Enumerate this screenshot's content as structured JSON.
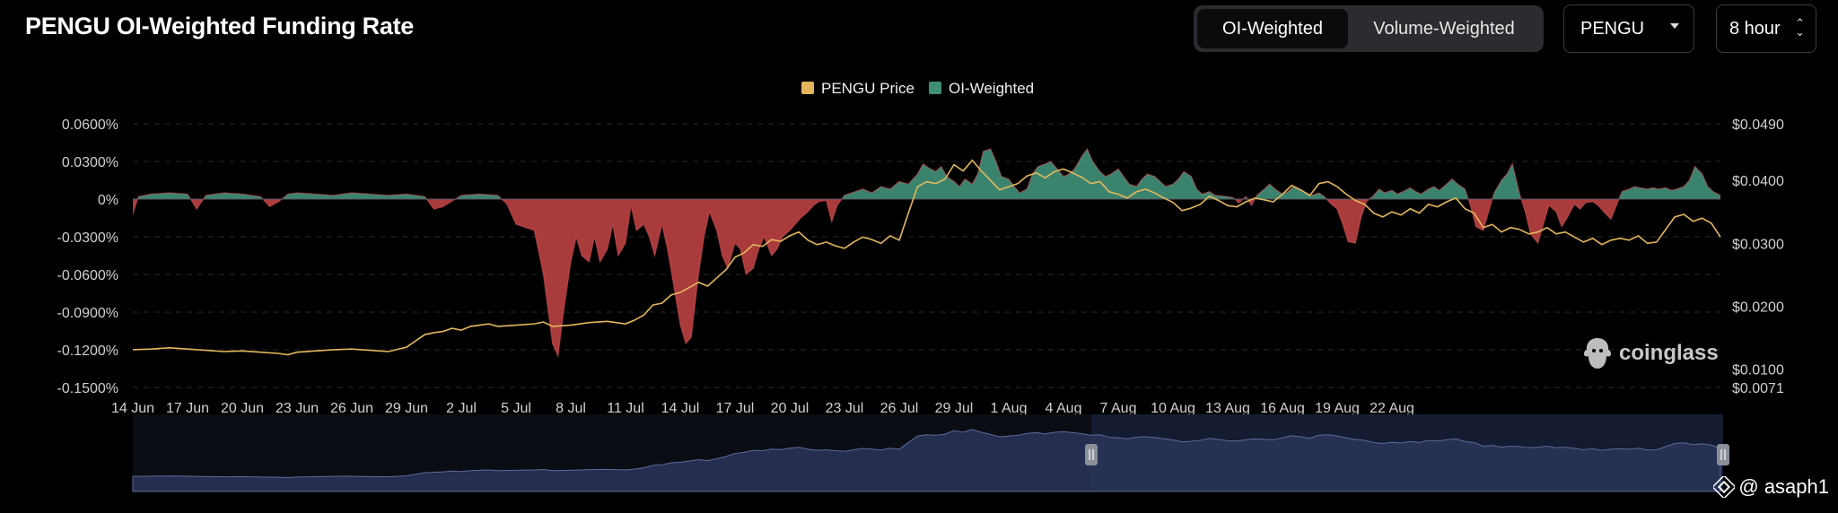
{
  "header": {
    "title": "PENGU OI-Weighted Funding Rate",
    "mode_tabs": [
      {
        "label": "OI-Weighted",
        "active": true
      },
      {
        "label": "Volume-Weighted",
        "active": false
      }
    ],
    "coin_select": "PENGU",
    "interval_select": "8 hour"
  },
  "watermark": "coinglass",
  "credit": "@ asaph1",
  "colors": {
    "background": "#000000",
    "price_line": "#e3b85c",
    "positive_area": "#3f8f78",
    "negative_area": "#b94042",
    "grid": "#2a2a2e",
    "axis_text": "#d0d0d0"
  },
  "icons": {
    "watermark": "coinglass-logo-icon",
    "credit": "binance-diamond-icon",
    "select_caret": "chevron-down-icon",
    "interval_caret": "up-down-icon",
    "range_handle": "pause-handle-icon"
  },
  "chart_data": {
    "type": "area",
    "legend": [
      {
        "name": "PENGU Price",
        "color": "#e3b85c"
      },
      {
        "name": "OI-Weighted",
        "color": "#3f8f78"
      }
    ],
    "legend_position": "top-center",
    "grid": true,
    "x_ticks": [
      "14 Jun",
      "17 Jun",
      "20 Jun",
      "23 Jun",
      "26 Jun",
      "29 Jun",
      "2 Jul",
      "5 Jul",
      "8 Jul",
      "11 Jul",
      "14 Jul",
      "17 Jul",
      "20 Jul",
      "23 Jul",
      "26 Jul",
      "29 Jul",
      "1 Aug",
      "4 Aug",
      "7 Aug",
      "10 Aug",
      "13 Aug",
      "16 Aug",
      "19 Aug",
      "22 Aug"
    ],
    "y_left_ticks": [
      "0.0600%",
      "0.0300%",
      "0%",
      "-0.0300%",
      "-0.0600%",
      "-0.0900%",
      "-0.1200%",
      "-0.1500%"
    ],
    "y_left_range": [
      -0.15,
      0.06
    ],
    "y_right_ticks": [
      "$0.0490",
      "$0.0400",
      "$0.0300",
      "$0.0200",
      "$0.0100",
      "$0.0071"
    ],
    "y_right_range": [
      0.0071,
      0.049
    ],
    "x_range_days": [
      0,
      76
    ],
    "funding_rate_pct": [
      [
        0,
        -0.012
      ],
      [
        0.3,
        0.002
      ],
      [
        1,
        0.004
      ],
      [
        2,
        0.005
      ],
      [
        3,
        0.004
      ],
      [
        3.5,
        -0.008
      ],
      [
        4,
        0.003
      ],
      [
        5,
        0.005
      ],
      [
        6,
        0.004
      ],
      [
        7,
        0.002
      ],
      [
        7.5,
        -0.006
      ],
      [
        8,
        -0.002
      ],
      [
        8.5,
        0.004
      ],
      [
        9,
        0.005
      ],
      [
        10,
        0.004
      ],
      [
        11,
        0.003
      ],
      [
        12,
        0.005
      ],
      [
        13,
        0.004
      ],
      [
        14,
        0.003
      ],
      [
        15,
        0.004
      ],
      [
        16,
        0.002
      ],
      [
        16.5,
        -0.008
      ],
      [
        17,
        -0.006
      ],
      [
        18,
        0.003
      ],
      [
        19,
        0.004
      ],
      [
        20,
        0.003
      ],
      [
        20.5,
        -0.004
      ],
      [
        21,
        -0.02
      ],
      [
        22,
        -0.025
      ],
      [
        22.5,
        -0.06
      ],
      [
        23,
        -0.115
      ],
      [
        23.3,
        -0.125
      ],
      [
        23.6,
        -0.09
      ],
      [
        24,
        -0.05
      ],
      [
        24.3,
        -0.03
      ],
      [
        24.6,
        -0.045
      ],
      [
        25,
        -0.05
      ],
      [
        25.3,
        -0.03
      ],
      [
        25.6,
        -0.05
      ],
      [
        26,
        -0.04
      ],
      [
        26.3,
        -0.02
      ],
      [
        26.6,
        -0.045
      ],
      [
        27,
        -0.035
      ],
      [
        27.3,
        -0.005
      ],
      [
        27.6,
        -0.025
      ],
      [
        28,
        -0.02
      ],
      [
        28.3,
        -0.03
      ],
      [
        28.6,
        -0.045
      ],
      [
        29,
        -0.02
      ],
      [
        29.3,
        -0.04
      ],
      [
        29.6,
        -0.065
      ],
      [
        30,
        -0.1
      ],
      [
        30.3,
        -0.115
      ],
      [
        30.6,
        -0.11
      ],
      [
        31,
        -0.06
      ],
      [
        31.3,
        -0.03
      ],
      [
        31.6,
        -0.01
      ],
      [
        32,
        -0.025
      ],
      [
        32.3,
        -0.045
      ],
      [
        32.6,
        -0.055
      ],
      [
        33,
        -0.035
      ],
      [
        33.3,
        -0.04
      ],
      [
        33.6,
        -0.06
      ],
      [
        34,
        -0.055
      ],
      [
        34.3,
        -0.04
      ],
      [
        34.6,
        -0.03
      ],
      [
        35,
        -0.045
      ],
      [
        35.3,
        -0.04
      ],
      [
        35.6,
        -0.03
      ],
      [
        36,
        -0.025
      ],
      [
        36.3,
        -0.02
      ],
      [
        36.6,
        -0.015
      ],
      [
        37,
        -0.01
      ],
      [
        37.3,
        -0.005
      ],
      [
        37.6,
        -0.002
      ],
      [
        38,
        -0.001
      ],
      [
        38.3,
        -0.018
      ],
      [
        38.6,
        -0.005
      ],
      [
        39,
        0.003
      ],
      [
        40,
        0.008
      ],
      [
        40.5,
        0.005
      ],
      [
        41,
        0.01
      ],
      [
        41.5,
        0.008
      ],
      [
        42,
        0.014
      ],
      [
        42.5,
        0.012
      ],
      [
        43,
        0.02
      ],
      [
        43.3,
        0.028
      ],
      [
        43.6,
        0.025
      ],
      [
        44,
        0.022
      ],
      [
        44.3,
        0.026
      ],
      [
        44.6,
        0.018
      ],
      [
        45,
        0.014
      ],
      [
        45.3,
        0.01
      ],
      [
        45.6,
        0.016
      ],
      [
        46,
        0.012
      ],
      [
        46.3,
        0.02
      ],
      [
        46.6,
        0.038
      ],
      [
        47,
        0.04
      ],
      [
        47.3,
        0.03
      ],
      [
        47.6,
        0.018
      ],
      [
        48,
        0.016
      ],
      [
        48.3,
        0.01
      ],
      [
        48.6,
        0.005
      ],
      [
        49,
        0.008
      ],
      [
        49.3,
        0.02
      ],
      [
        49.6,
        0.026
      ],
      [
        50,
        0.028
      ],
      [
        50.3,
        0.03
      ],
      [
        50.6,
        0.025
      ],
      [
        51,
        0.018
      ],
      [
        51.3,
        0.02
      ],
      [
        51.6,
        0.024
      ],
      [
        52,
        0.034
      ],
      [
        52.3,
        0.04
      ],
      [
        52.6,
        0.03
      ],
      [
        53,
        0.022
      ],
      [
        53.3,
        0.018
      ],
      [
        53.6,
        0.02
      ],
      [
        54,
        0.024
      ],
      [
        54.3,
        0.018
      ],
      [
        54.6,
        0.012
      ],
      [
        55,
        0.01
      ],
      [
        55.3,
        0.016
      ],
      [
        55.6,
        0.02
      ],
      [
        56,
        0.018
      ],
      [
        56.3,
        0.014
      ],
      [
        56.6,
        0.01
      ],
      [
        57,
        0.012
      ],
      [
        57.3,
        0.016
      ],
      [
        57.6,
        0.022
      ],
      [
        58,
        0.018
      ],
      [
        58.3,
        0.008
      ],
      [
        58.6,
        0.004
      ],
      [
        59,
        0.006
      ],
      [
        59.3,
        0.003
      ],
      [
        60,
        0.002
      ],
      [
        60.3,
        0.001
      ],
      [
        60.6,
        -0.003
      ],
      [
        61,
        0.002
      ],
      [
        61.3,
        -0.005
      ],
      [
        61.6,
        0.003
      ],
      [
        62,
        0.008
      ],
      [
        62.3,
        0.012
      ],
      [
        62.6,
        0.008
      ],
      [
        63,
        0.004
      ],
      [
        63.3,
        0.006
      ],
      [
        63.6,
        0.01
      ],
      [
        64,
        0.007
      ],
      [
        64.3,
        0.005
      ],
      [
        64.6,
        0.003
      ],
      [
        65,
        0.005
      ],
      [
        65.3,
        0.002
      ],
      [
        65.6,
        -0.003
      ],
      [
        66,
        -0.008
      ],
      [
        66.3,
        -0.02
      ],
      [
        66.6,
        -0.034
      ],
      [
        67,
        -0.035
      ],
      [
        67.3,
        -0.015
      ],
      [
        67.6,
        -0.002
      ],
      [
        68,
        0.003
      ],
      [
        68.3,
        0.008
      ],
      [
        68.6,
        0.005
      ],
      [
        69,
        0.007
      ],
      [
        69.3,
        0.004
      ],
      [
        69.6,
        0.006
      ],
      [
        70,
        0.009
      ],
      [
        70.3,
        0.006
      ],
      [
        70.6,
        0.004
      ],
      [
        71,
        0.008
      ],
      [
        71.3,
        0.01
      ],
      [
        71.6,
        0.007
      ],
      [
        72,
        0.012
      ],
      [
        72.3,
        0.016
      ],
      [
        72.6,
        0.012
      ],
      [
        73,
        0.008
      ],
      [
        73.3,
        -0.005
      ],
      [
        73.6,
        -0.022
      ],
      [
        74,
        -0.025
      ],
      [
        74.3,
        -0.01
      ],
      [
        74.6,
        0.005
      ],
      [
        75,
        0.015
      ],
      [
        75.3,
        0.02
      ],
      [
        75.6,
        0.028
      ],
      [
        76,
        0.004
      ],
      [
        76.3,
        -0.01
      ],
      [
        76.6,
        -0.028
      ],
      [
        77,
        -0.035
      ],
      [
        77.3,
        -0.02
      ],
      [
        77.6,
        -0.005
      ],
      [
        78,
        -0.01
      ],
      [
        78.3,
        -0.022
      ],
      [
        78.6,
        -0.015
      ],
      [
        79,
        -0.004
      ],
      [
        79.3,
        -0.008
      ],
      [
        79.6,
        -0.003
      ],
      [
        80,
        -0.002
      ],
      [
        80.3,
        -0.005
      ],
      [
        80.6,
        -0.01
      ],
      [
        81,
        -0.016
      ],
      [
        81.3,
        -0.005
      ],
      [
        81.6,
        0.006
      ],
      [
        82,
        0.008
      ],
      [
        82.3,
        0.01
      ],
      [
        82.6,
        0.009
      ],
      [
        83,
        0.008
      ],
      [
        83.3,
        0.009
      ],
      [
        83.6,
        0.008
      ],
      [
        84,
        0.009
      ],
      [
        84.3,
        0.007
      ],
      [
        84.6,
        0.008
      ],
      [
        85,
        0.01
      ],
      [
        85.3,
        0.015
      ],
      [
        85.6,
        0.026
      ],
      [
        86,
        0.02
      ],
      [
        86.3,
        0.01
      ],
      [
        86.6,
        0.006
      ],
      [
        87,
        0.003
      ]
    ],
    "funding_x_scale_days": 87,
    "price_usd": [
      [
        0,
        0.0131
      ],
      [
        1,
        0.0132
      ],
      [
        2,
        0.0134
      ],
      [
        3,
        0.0132
      ],
      [
        4,
        0.013
      ],
      [
        5,
        0.0128
      ],
      [
        6,
        0.0129
      ],
      [
        7,
        0.0127
      ],
      [
        8,
        0.0125
      ],
      [
        8.5,
        0.0123
      ],
      [
        9,
        0.0127
      ],
      [
        10,
        0.0129
      ],
      [
        11,
        0.0131
      ],
      [
        12,
        0.0132
      ],
      [
        13,
        0.013
      ],
      [
        14,
        0.0128
      ],
      [
        15,
        0.0135
      ],
      [
        15.5,
        0.0145
      ],
      [
        16,
        0.0155
      ],
      [
        16.5,
        0.0158
      ],
      [
        17,
        0.016
      ],
      [
        17.5,
        0.0165
      ],
      [
        18,
        0.0162
      ],
      [
        18.5,
        0.0168
      ],
      [
        19,
        0.017
      ],
      [
        19.5,
        0.0172
      ],
      [
        20,
        0.0168
      ],
      [
        21,
        0.017
      ],
      [
        22,
        0.0172
      ],
      [
        22.5,
        0.0175
      ],
      [
        23,
        0.0168
      ],
      [
        24,
        0.017
      ],
      [
        25,
        0.0174
      ],
      [
        26,
        0.0176
      ],
      [
        27,
        0.0172
      ],
      [
        27.5,
        0.0178
      ],
      [
        28,
        0.0186
      ],
      [
        28.5,
        0.0202
      ],
      [
        29,
        0.0205
      ],
      [
        29.5,
        0.0218
      ],
      [
        30,
        0.0222
      ],
      [
        30.5,
        0.023
      ],
      [
        31,
        0.0238
      ],
      [
        31.5,
        0.0232
      ],
      [
        32,
        0.0245
      ],
      [
        32.5,
        0.0258
      ],
      [
        33,
        0.0278
      ],
      [
        33.5,
        0.0285
      ],
      [
        34,
        0.0298
      ],
      [
        34.5,
        0.0295
      ],
      [
        35,
        0.0306
      ],
      [
        35.5,
        0.0303
      ],
      [
        36,
        0.0312
      ],
      [
        36.5,
        0.0318
      ],
      [
        37,
        0.0305
      ],
      [
        37.5,
        0.0298
      ],
      [
        38,
        0.0302
      ],
      [
        38.5,
        0.0296
      ],
      [
        39,
        0.0292
      ],
      [
        39.5,
        0.0302
      ],
      [
        40,
        0.031
      ],
      [
        40.5,
        0.0306
      ],
      [
        41,
        0.03
      ],
      [
        41.5,
        0.0312
      ],
      [
        42,
        0.0305
      ],
      [
        42.5,
        0.0348
      ],
      [
        43,
        0.039
      ],
      [
        43.5,
        0.0398
      ],
      [
        44,
        0.0395
      ],
      [
        44.5,
        0.0402
      ],
      [
        45,
        0.0425
      ],
      [
        45.5,
        0.0415
      ],
      [
        46,
        0.0432
      ],
      [
        46.5,
        0.0415
      ],
      [
        47,
        0.04
      ],
      [
        47.5,
        0.0385
      ],
      [
        48,
        0.039
      ],
      [
        48.5,
        0.0395
      ],
      [
        49,
        0.0407
      ],
      [
        49.5,
        0.0412
      ],
      [
        50,
        0.0404
      ],
      [
        50.5,
        0.0414
      ],
      [
        51,
        0.0418
      ],
      [
        51.5,
        0.0412
      ],
      [
        52,
        0.0405
      ],
      [
        52.5,
        0.0395
      ],
      [
        53,
        0.0398
      ],
      [
        53.5,
        0.0382
      ],
      [
        54,
        0.0378
      ],
      [
        54.5,
        0.0372
      ],
      [
        55,
        0.0382
      ],
      [
        55.5,
        0.0386
      ],
      [
        56,
        0.038
      ],
      [
        56.5,
        0.0372
      ],
      [
        57,
        0.0365
      ],
      [
        57.5,
        0.0352
      ],
      [
        58,
        0.0356
      ],
      [
        58.5,
        0.0362
      ],
      [
        59,
        0.0375
      ],
      [
        59.5,
        0.0368
      ],
      [
        60,
        0.036
      ],
      [
        60.5,
        0.0358
      ],
      [
        61,
        0.0366
      ],
      [
        61.5,
        0.0372
      ],
      [
        62,
        0.0369
      ],
      [
        62.5,
        0.0366
      ],
      [
        63,
        0.0378
      ],
      [
        63.5,
        0.0392
      ],
      [
        64,
        0.0385
      ],
      [
        64.5,
        0.0376
      ],
      [
        65,
        0.0395
      ],
      [
        65.5,
        0.0398
      ],
      [
        66,
        0.039
      ],
      [
        66.5,
        0.0378
      ],
      [
        67,
        0.0368
      ],
      [
        67.5,
        0.0362
      ],
      [
        68,
        0.0348
      ],
      [
        68.5,
        0.0342
      ],
      [
        69,
        0.035
      ],
      [
        69.5,
        0.0345
      ],
      [
        70,
        0.0355
      ],
      [
        70.5,
        0.0348
      ],
      [
        71,
        0.0362
      ],
      [
        71.5,
        0.0358
      ],
      [
        72,
        0.0366
      ],
      [
        72.5,
        0.0372
      ],
      [
        73,
        0.0355
      ],
      [
        73.5,
        0.0348
      ],
      [
        74,
        0.0325
      ],
      [
        74.5,
        0.033
      ],
      [
        75,
        0.0318
      ],
      [
        75.5,
        0.0325
      ],
      [
        76,
        0.0322
      ],
      [
        76.5,
        0.0315
      ],
      [
        77,
        0.0318
      ],
      [
        77.5,
        0.0325
      ],
      [
        78,
        0.0315
      ],
      [
        78.5,
        0.0318
      ],
      [
        79,
        0.031
      ],
      [
        79.5,
        0.0302
      ],
      [
        80,
        0.0308
      ],
      [
        80.5,
        0.0298
      ],
      [
        81,
        0.0305
      ],
      [
        81.5,
        0.0308
      ],
      [
        82,
        0.0305
      ],
      [
        82.5,
        0.0312
      ],
      [
        83,
        0.03
      ],
      [
        83.5,
        0.0302
      ],
      [
        84,
        0.0322
      ],
      [
        84.5,
        0.0342
      ],
      [
        85,
        0.0346
      ],
      [
        85.5,
        0.0335
      ],
      [
        86,
        0.034
      ],
      [
        86.5,
        0.0332
      ],
      [
        87,
        0.031
      ]
    ]
  }
}
